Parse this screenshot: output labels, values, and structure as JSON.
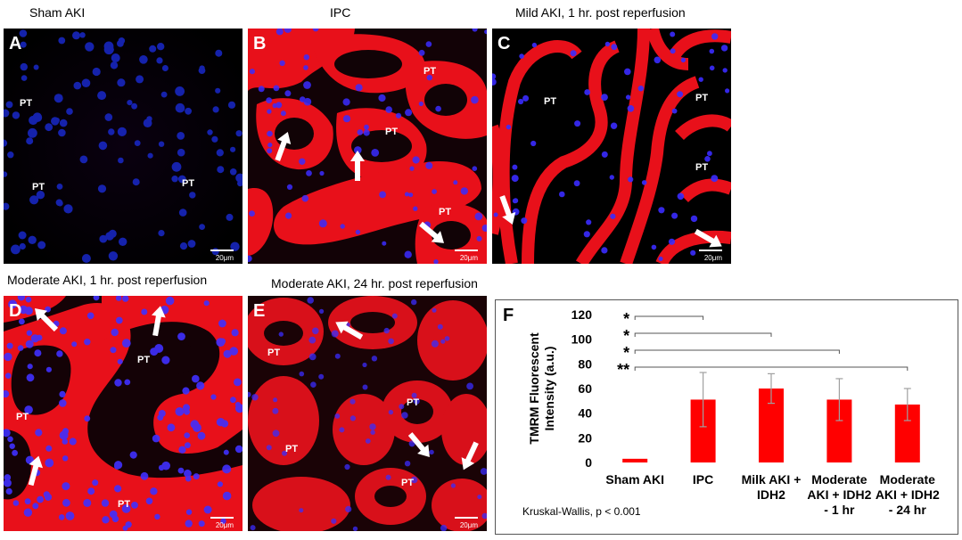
{
  "panels": [
    {
      "id": "A",
      "title": "Sham AKI",
      "scale": "20μm",
      "labels": [
        "PT",
        "PT",
        "PT"
      ]
    },
    {
      "id": "B",
      "title": "IPC",
      "scale": "20μm",
      "labels": [
        "PT",
        "PT",
        "PT"
      ]
    },
    {
      "id": "C",
      "title": "Mild AKI, 1 hr. post reperfusion",
      "scale": "20μm",
      "labels": [
        "PT",
        "PT",
        "PT"
      ]
    },
    {
      "id": "D",
      "title": "Moderate AKI, 1 hr. post reperfusion",
      "scale": "20μm",
      "labels": [
        "PT",
        "PT",
        "PT"
      ]
    },
    {
      "id": "E",
      "title": "Moderate AKI, 24 hr. post reperfusion",
      "scale": "20μm",
      "labels": [
        "PT",
        "PT",
        "PT",
        "PT"
      ]
    }
  ],
  "chart_letter": "F",
  "chart_data": {
    "type": "bar",
    "categories": [
      "Sham AKI",
      "IPC",
      "Milk AKI + IDH2",
      "Moderate AKI + IDH2 - 1 hr",
      "Moderate AKI + IDH2 - 24 hr"
    ],
    "category_lines": [
      [
        "Sham AKI"
      ],
      [
        "IPC"
      ],
      [
        "Milk AKI +",
        "IDH2"
      ],
      [
        "Moderate",
        "AKI + IDH2",
        "- 1 hr"
      ],
      [
        "Moderate",
        "AKI + IDH2",
        "- 24 hr"
      ]
    ],
    "values": [
      3,
      51,
      60,
      51,
      47
    ],
    "errors": [
      0.5,
      22,
      12,
      17,
      13
    ],
    "ylabel_lines": [
      "TMRM Fluorescent",
      "Intensity (a.u.)"
    ],
    "ylim": [
      0,
      120
    ],
    "yticks": [
      0,
      20,
      40,
      60,
      80,
      100,
      120
    ],
    "bar_color": "#ff0000",
    "significance": [
      {
        "label": "*",
        "from": 0,
        "to": 1
      },
      {
        "label": "*",
        "from": 0,
        "to": 2
      },
      {
        "label": "*",
        "from": 0,
        "to": 3
      },
      {
        "label": "**",
        "from": 0,
        "to": 4
      }
    ],
    "annotation": "Kruskal-Wallis, p < 0.001"
  }
}
